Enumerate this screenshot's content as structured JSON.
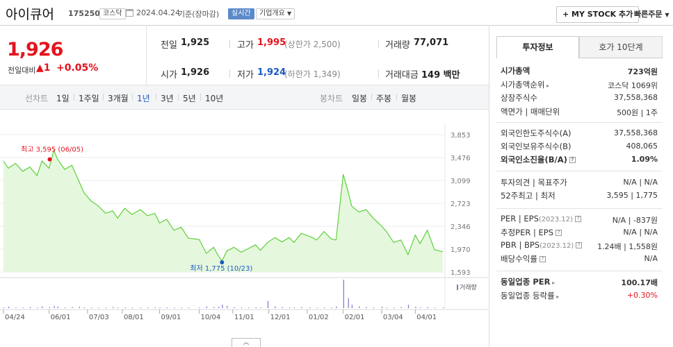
{
  "header": {
    "stock_name": "아이큐어",
    "code": "175250",
    "market": "코스닥",
    "date": "2024.04.24",
    "basis": "기준(장마감)",
    "realtime": "실시간",
    "company_info": "기업개요",
    "my_stock": "MY STOCK 추가",
    "quick_order": "빠른주문"
  },
  "price": {
    "current": "1,926",
    "change_label": "전일대비",
    "change_arrow": "▲",
    "change_value": "1",
    "change_pct": "+0.05%"
  },
  "summary": {
    "prev_label": "전일",
    "prev_value": "1,925",
    "high_label": "고가",
    "high_value": "1,995",
    "upper_limit": "(상한가 2,500)",
    "volume_label": "거래량",
    "volume_value": "77,071",
    "open_label": "시가",
    "open_value": "1,926",
    "low_label": "저가",
    "low_value": "1,924",
    "lower_limit": "(하한가 1,349)",
    "amount_label": "거래대금",
    "amount_value": "149 백만"
  },
  "periods": {
    "line_chart_label": "선차트",
    "items": [
      "1일",
      "1주일",
      "3개월",
      "1년",
      "3년",
      "5년",
      "10년"
    ],
    "active": "1년",
    "candle_label": "봉차트",
    "candle_items": [
      "일봉",
      "주봉",
      "월봉"
    ]
  },
  "chart_data": {
    "type": "area",
    "x": [
      "2023-04-24",
      "2023-04-28",
      "2023-05-04",
      "2023-05-10",
      "2023-05-16",
      "2023-05-22",
      "2023-05-26",
      "2023-06-01",
      "2023-06-05",
      "2023-06-08",
      "2023-06-14",
      "2023-06-20",
      "2023-06-26",
      "2023-06-30",
      "2023-07-06",
      "2023-07-12",
      "2023-07-18",
      "2023-07-24",
      "2023-07-28",
      "2023-08-03",
      "2023-08-09",
      "2023-08-16",
      "2023-08-22",
      "2023-08-28",
      "2023-09-01",
      "2023-09-07",
      "2023-09-13",
      "2023-09-19",
      "2023-09-25",
      "2023-10-04",
      "2023-10-10",
      "2023-10-16",
      "2023-10-20",
      "2023-10-23",
      "2023-10-27",
      "2023-11-02",
      "2023-11-08",
      "2023-11-14",
      "2023-11-20",
      "2023-11-24",
      "2023-11-30",
      "2023-12-06",
      "2023-12-12",
      "2023-12-18",
      "2023-12-22",
      "2023-12-28",
      "2024-01-04",
      "2024-01-10",
      "2024-01-16",
      "2024-01-22",
      "2024-01-26",
      "2024-02-01",
      "2024-02-05",
      "2024-02-08",
      "2024-02-14",
      "2024-02-20",
      "2024-02-26",
      "2024-03-04",
      "2024-03-08",
      "2024-03-14",
      "2024-03-20",
      "2024-03-26",
      "2024-04-01",
      "2024-04-05",
      "2024-04-11",
      "2024-04-17",
      "2024-04-24"
    ],
    "values": [
      3420,
      3300,
      3380,
      3250,
      3320,
      3180,
      3420,
      3300,
      3595,
      3450,
      3280,
      3350,
      3080,
      2900,
      2760,
      2680,
      2560,
      2600,
      2480,
      2640,
      2540,
      2620,
      2520,
      2560,
      2400,
      2460,
      2280,
      2330,
      2150,
      2130,
      1900,
      2000,
      1860,
      1775,
      1940,
      2000,
      1920,
      1980,
      2040,
      1950,
      2080,
      2160,
      2090,
      2160,
      2080,
      2230,
      2180,
      2120,
      2260,
      2140,
      2120,
      3200,
      2920,
      2680,
      2580,
      2620,
      2480,
      2350,
      2260,
      2080,
      2120,
      1880,
      2200,
      2060,
      2280,
      1960,
      1926
    ],
    "volume": [
      0.02,
      0.05,
      0.03,
      0.02,
      0.04,
      0.03,
      0.06,
      0.04,
      0.08,
      0.05,
      0.03,
      0.04,
      0.05,
      0.03,
      0.02,
      0.03,
      0.02,
      0.04,
      0.02,
      0.03,
      0.02,
      0.02,
      0.03,
      0.02,
      0.02,
      0.03,
      0.02,
      0.02,
      0.03,
      0.02,
      0.06,
      0.04,
      0.05,
      0.12,
      0.08,
      0.04,
      0.03,
      0.02,
      0.03,
      0.02,
      0.25,
      0.06,
      0.04,
      0.03,
      0.02,
      0.04,
      0.03,
      0.02,
      0.03,
      0.02,
      0.06,
      1.0,
      0.35,
      0.12,
      0.06,
      0.04,
      0.03,
      0.05,
      0.03,
      0.02,
      0.04,
      0.12,
      0.05,
      0.03,
      0.04,
      0.03,
      0.02
    ],
    "ylim": [
      1593,
      3853
    ],
    "yticks": [
      "3,853",
      "3,476",
      "3,099",
      "2,723",
      "2,346",
      "1,970",
      "1,593"
    ],
    "xticks": [
      "04/24",
      "06/01",
      "07/03",
      "08/01",
      "09/01",
      "10/04",
      "11/01",
      "12/01",
      "01/02",
      "02/01",
      "03/04",
      "04/01"
    ],
    "xtick_dates": [
      "2023-04-24",
      "2023-06-01",
      "2023-07-03",
      "2023-08-01",
      "2023-09-01",
      "2023-10-04",
      "2023-11-01",
      "2023-12-01",
      "2024-01-02",
      "2024-02-01",
      "2024-03-04",
      "2024-04-01"
    ],
    "high_label": "최고 3,595 (06/05)",
    "high_date": "2023-06-05",
    "high_value": 3595,
    "low_label": "최저 1,775 (10/23)",
    "low_date": "2023-10-23",
    "low_value": 1775,
    "volume_label": "거래량",
    "line_color": "#5fcf3b",
    "fill_color": "#e5f8dd"
  },
  "tabs": {
    "invest": "투자정보",
    "ask10": "호가 10단계"
  },
  "invest": {
    "g1": [
      {
        "label": "시가총액",
        "value": "723억원",
        "bold": true
      },
      {
        "label": "시가총액순위",
        "value": "코스닥 1069위",
        "arrow": true
      },
      {
        "label": "상장주식수",
        "value": "37,558,368"
      },
      {
        "label": "액면가 | 매매단위",
        "value": "500원 | 1주"
      }
    ],
    "g2": [
      {
        "label": "외국인한도주식수(A)",
        "value": "37,558,368"
      },
      {
        "label": "외국인보유주식수(B)",
        "value": "408,065"
      },
      {
        "label": "외국인소진율(B/A)",
        "value": "1.09%",
        "bold": true,
        "q": true
      }
    ],
    "g3": [
      {
        "label": "투자의견 | 목표주가",
        "value": "N/A | N/A"
      },
      {
        "label": "52주최고 | 최저",
        "value": "3,595 | 1,775"
      }
    ],
    "g4": [
      {
        "label": "PER | EPS",
        "sub": "(2023.12)",
        "value": "N/A | -837원",
        "q": true
      },
      {
        "label": "추정PER | EPS",
        "value": "N/A | N/A",
        "q": true
      },
      {
        "label": "PBR | BPS",
        "sub": "(2023.12)",
        "value": "1.24배 | 1,558원",
        "q": true
      },
      {
        "label": "배당수익률",
        "value": "N/A",
        "q": true
      }
    ],
    "g5": [
      {
        "label": "동일업종 PER",
        "value": "100.17배",
        "bold": true,
        "arrow": true
      },
      {
        "label": "동일업종 등락률",
        "value": "+0.30%",
        "red": true,
        "arrow": true
      }
    ]
  }
}
